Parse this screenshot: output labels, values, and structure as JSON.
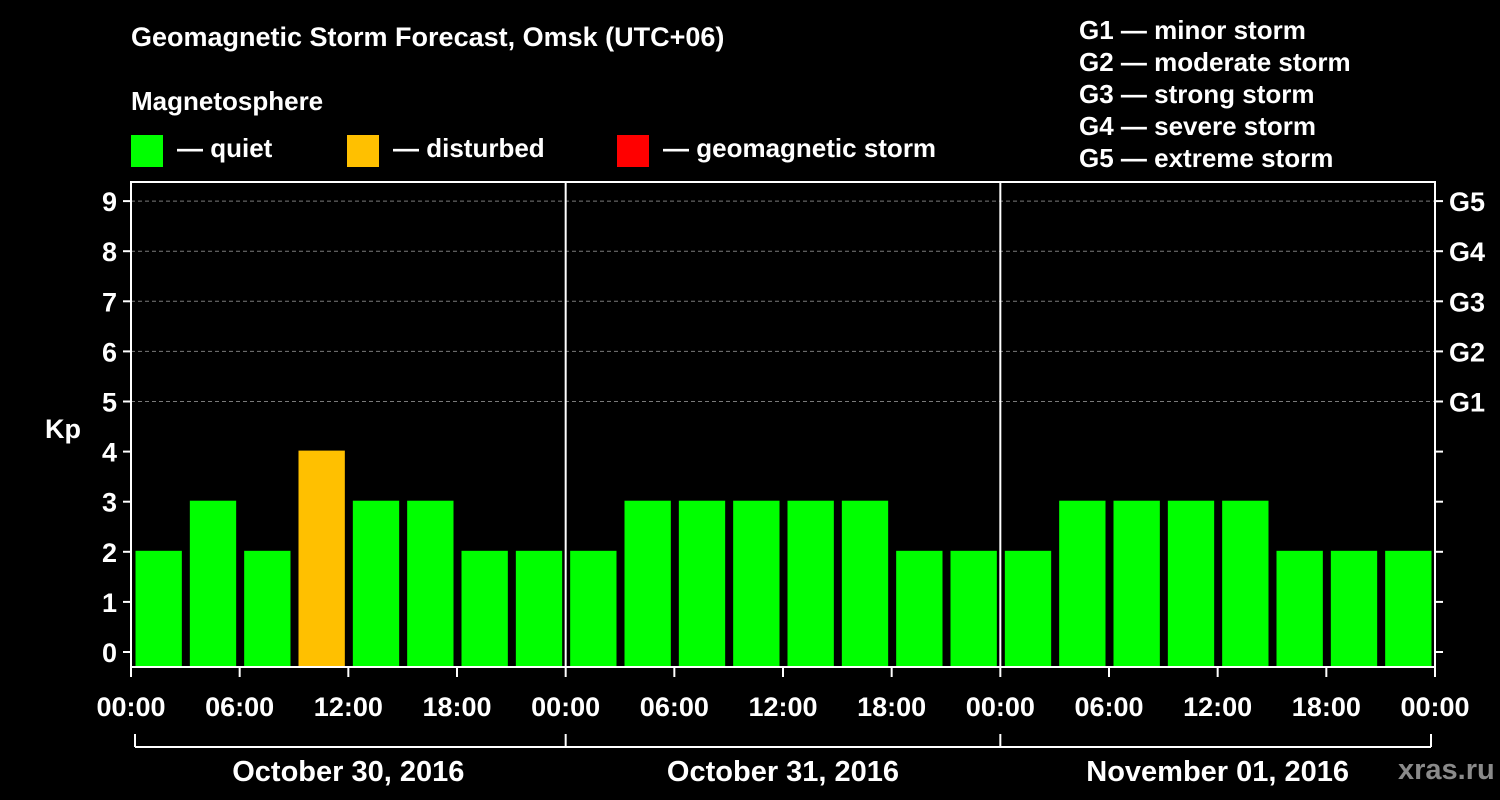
{
  "title": "Geomagnetic Storm Forecast, Omsk (UTC+06)",
  "magnetosphere_label": "Magnetosphere",
  "legend": [
    {
      "label": "— quiet",
      "color": "#00ff00"
    },
    {
      "label": "— disturbed",
      "color": "#ffc000"
    },
    {
      "label": "— geomagnetic storm",
      "color": "#ff0000"
    }
  ],
  "storm_scale": [
    "G1 — minor storm",
    "G2 — moderate storm",
    "G3 — strong storm",
    "G4 — severe storm",
    "G5 — extreme storm"
  ],
  "watermark": "xras.ru",
  "chart_data": {
    "type": "bar",
    "title": "Geomagnetic Storm Forecast, Omsk (UTC+06)",
    "ylabel": "Kp",
    "ylim": [
      0,
      9
    ],
    "y_ticks": [
      "0",
      "1",
      "2",
      "3",
      "4",
      "5",
      "6",
      "7",
      "8",
      "9"
    ],
    "right_axis_labels": [
      {
        "kp": 5,
        "label": "G1"
      },
      {
        "kp": 6,
        "label": "G2"
      },
      {
        "kp": 7,
        "label": "G3"
      },
      {
        "kp": 8,
        "label": "G4"
      },
      {
        "kp": 9,
        "label": "G5"
      }
    ],
    "x_tick_labels": [
      "00:00",
      "06:00",
      "12:00",
      "18:00",
      "00:00",
      "06:00",
      "12:00",
      "18:00",
      "00:00",
      "06:00",
      "12:00",
      "18:00",
      "00:00"
    ],
    "days": [
      "October 30, 2016",
      "October 31, 2016",
      "November 01, 2016"
    ],
    "interval_hours": 3,
    "values": [
      2,
      3,
      2,
      4,
      3,
      3,
      2,
      2,
      2,
      3,
      3,
      3,
      3,
      3,
      2,
      2,
      2,
      3,
      3,
      3,
      3,
      2,
      2,
      2
    ],
    "thresholds": {
      "disturbed": 4,
      "storm": 5
    },
    "colors": {
      "quiet": "#00ff00",
      "disturbed": "#ffc000",
      "storm": "#ff0000"
    },
    "grid": true
  }
}
